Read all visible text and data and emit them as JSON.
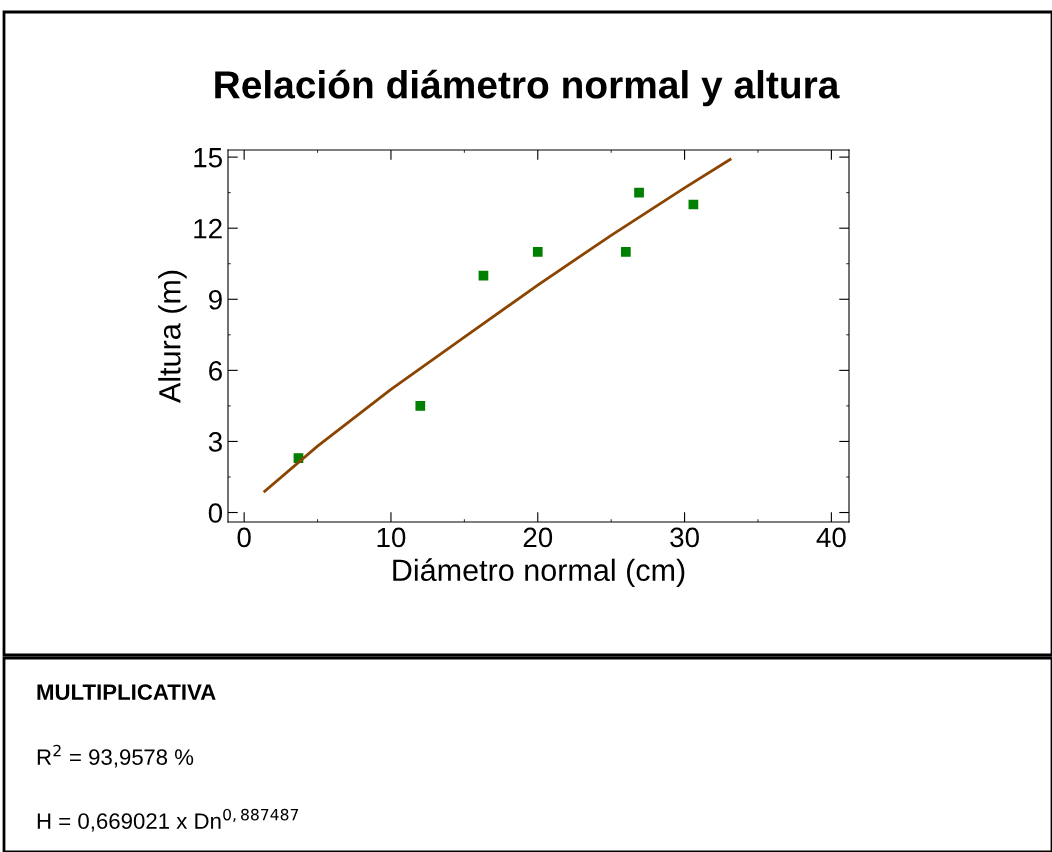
{
  "chart_data": {
    "type": "scatter",
    "title": "Relación diámetro normal y altura",
    "xlabel": "Diámetro normal (cm)",
    "ylabel": "Altura (m)",
    "x": [
      3.7,
      12,
      16.3,
      20,
      26,
      26.9,
      30.6
    ],
    "series": [
      {
        "color": "#008000",
        "values": [
          2.3,
          4.5,
          10,
          11,
          11,
          13.5,
          13
        ],
        "marker": "square"
      },
      {
        "type": "line",
        "color": "#8b4500",
        "x": [
          1.4,
          5,
          10,
          15,
          20,
          25,
          30,
          33.1
        ],
        "values": [
          0.9,
          2.8,
          5.2,
          7.4,
          9.6,
          11.7,
          13.7,
          14.9
        ],
        "marker": "none"
      }
    ],
    "xlim": [
      -1.1,
      41.2
    ],
    "xticks": [
      0,
      10,
      20,
      30,
      40
    ],
    "ylim": [
      -0.4,
      15.3
    ],
    "yticks": [
      0,
      3,
      6,
      9,
      12,
      15
    ],
    "grid": false,
    "legend": false,
    "annotations": [
      "MULTIPLICATIVA",
      "R$^{2}$ = 93,9578 %",
      "H = 0,669021 x Dn$^{0,887487}$"
    ]
  }
}
